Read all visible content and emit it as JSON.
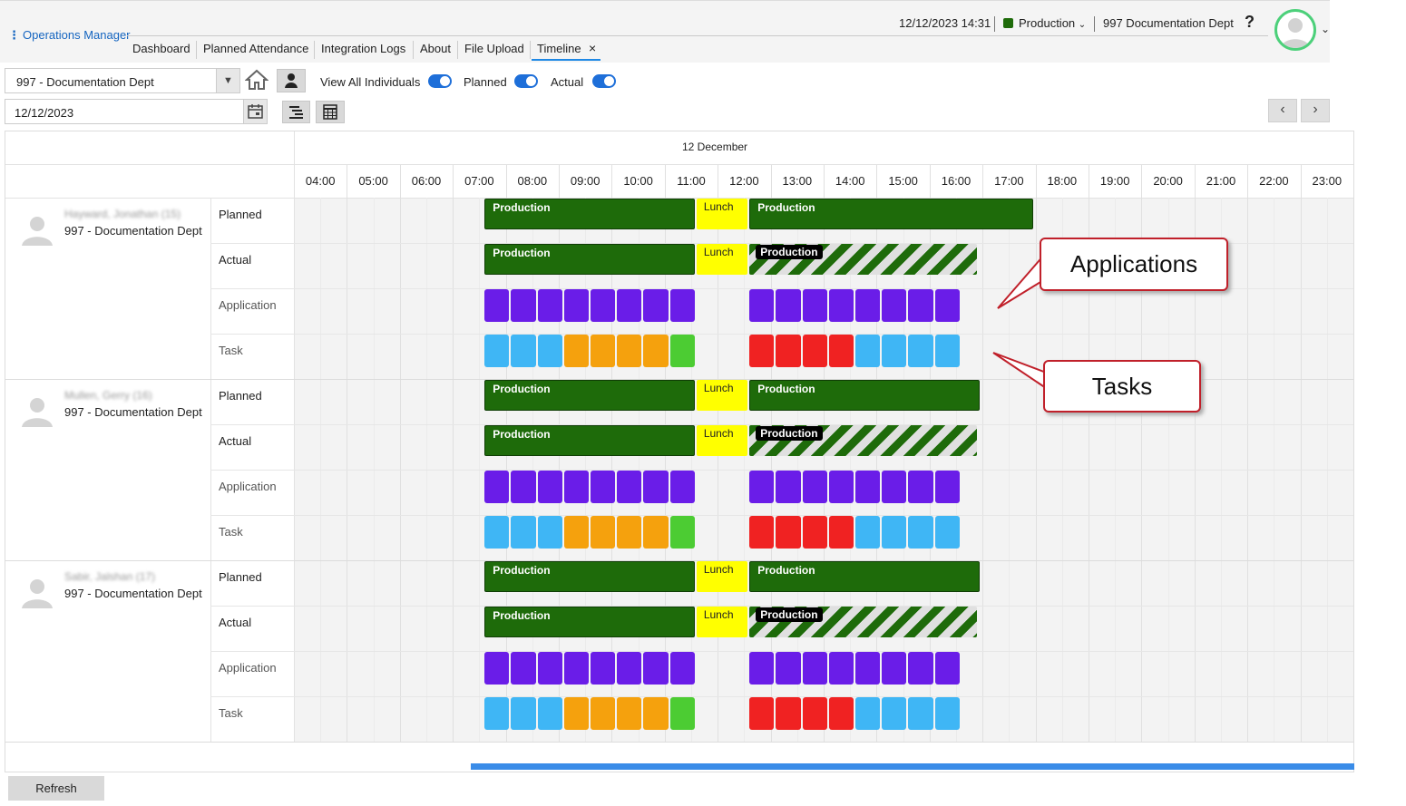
{
  "app": {
    "title": "Operations Manager"
  },
  "header": {
    "datetime": "12/12/2023 14:31",
    "activity": "Production",
    "department": "997 Documentation Dept",
    "help": "?"
  },
  "nav": {
    "tabs": [
      "Dashboard",
      "Planned Attendance",
      "Integration Logs",
      "About",
      "File Upload",
      "Timeline"
    ],
    "active": "Timeline",
    "close": "×"
  },
  "filters": {
    "department": "997 - Documentation Dept",
    "date": "12/12/2023",
    "toggles": [
      {
        "label": "View All Individuals",
        "on": true
      },
      {
        "label": "Planned",
        "on": true
      },
      {
        "label": "Actual",
        "on": true
      }
    ]
  },
  "timeline": {
    "date_header": "12 December",
    "hours": [
      "04:00",
      "05:00",
      "06:00",
      "07:00",
      "08:00",
      "09:00",
      "10:00",
      "11:00",
      "12:00",
      "13:00",
      "14:00",
      "15:00",
      "16:00",
      "17:00",
      "18:00",
      "19:00",
      "20:00",
      "21:00",
      "22:00",
      "23:00"
    ],
    "row_labels": [
      "Planned",
      "Actual",
      "Application",
      "Task"
    ],
    "lunch_label": "Lunch",
    "production_label": "Production",
    "people": [
      {
        "name": "Hayward, Jonathan (15)",
        "dept": "997 - Documentation Dept",
        "planned_end": "18:00"
      },
      {
        "name": "Mullen, Gerry (16)",
        "dept": "997 - Documentation Dept",
        "planned_end": "17:00"
      },
      {
        "name": "Sabir, Jalshan (17)",
        "dept": "997 - Documentation Dept",
        "planned_end": "17:00"
      }
    ],
    "colors": {
      "production": "#1e6b0a",
      "lunch": "#ffff00",
      "application": "#6a1de8",
      "task_blue": "#3fb6f5",
      "task_orange": "#f5a10d",
      "task_green": "#4ccc33",
      "task_red": "#f02222"
    }
  },
  "callouts": {
    "applications": "Applications",
    "tasks": "Tasks"
  },
  "footer": {
    "refresh": "Refresh"
  }
}
